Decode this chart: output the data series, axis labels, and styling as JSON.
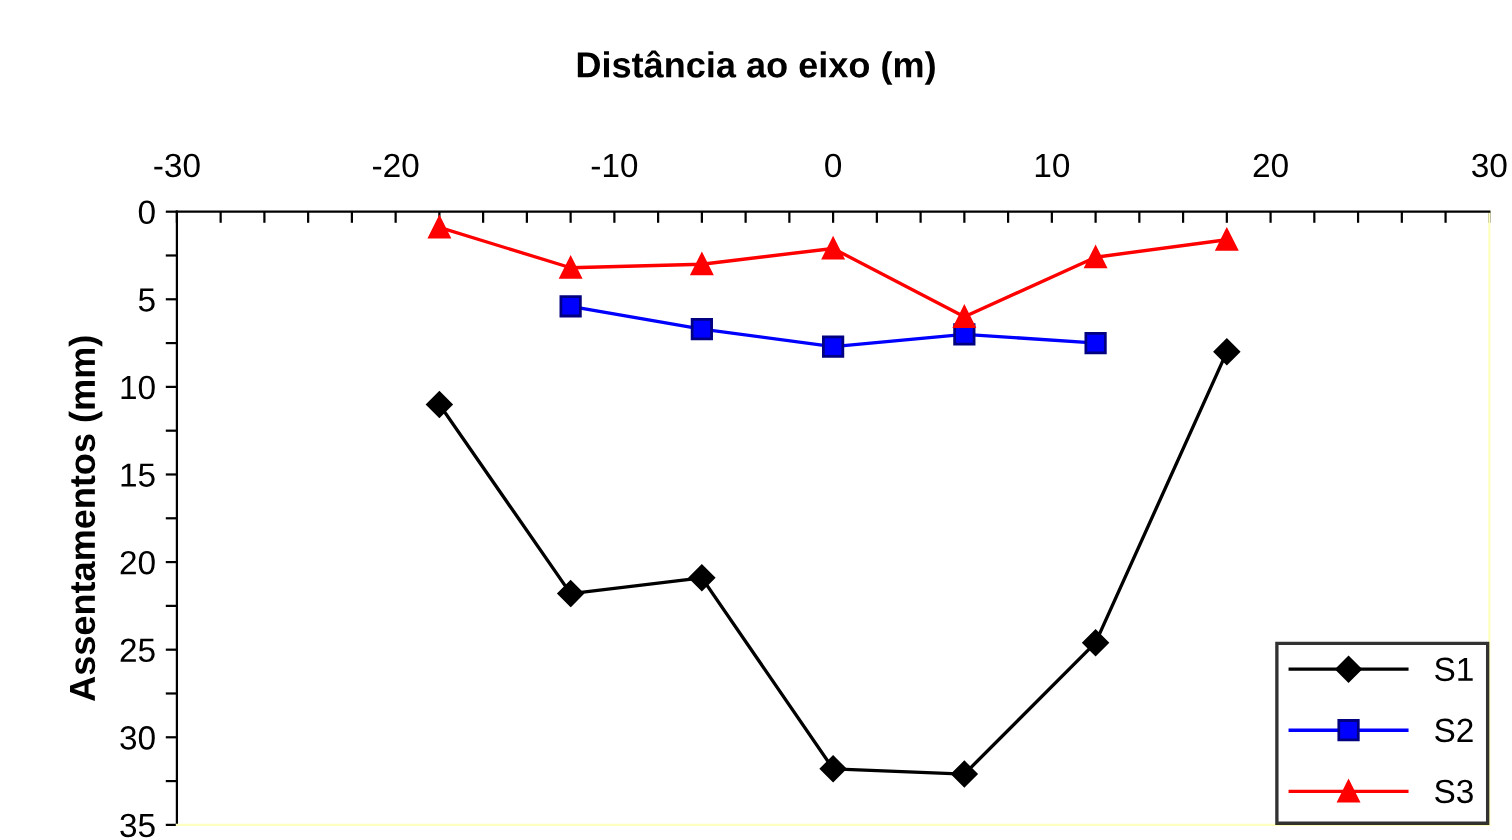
{
  "chart_data": {
    "type": "line",
    "title": "Distância ao eixo (m)",
    "ylabel": "Assentamentos (mm)",
    "xlim": [
      -30,
      30
    ],
    "ylim": [
      35,
      0
    ],
    "xticks": [
      -30,
      {
        "value": -28,
        "label": null
      },
      {
        "value": -26,
        "label": null
      },
      {
        "value": -24,
        "label": null
      },
      {
        "value": -22,
        "label": null
      },
      -20,
      {
        "value": -18,
        "label": null
      },
      {
        "value": -16,
        "label": null
      },
      {
        "value": -14,
        "label": null
      },
      {
        "value": -12,
        "label": null
      },
      -10,
      {
        "value": -8,
        "label": null
      },
      {
        "value": -6,
        "label": null
      },
      {
        "value": -4,
        "label": null
      },
      {
        "value": -2,
        "label": null
      },
      0,
      {
        "value": 2,
        "label": null
      },
      {
        "value": 4,
        "label": null
      },
      {
        "value": 6,
        "label": null
      },
      {
        "value": 8,
        "label": null
      },
      10,
      {
        "value": 12,
        "label": null
      },
      {
        "value": 14,
        "label": null
      },
      {
        "value": 16,
        "label": null
      },
      {
        "value": 18,
        "label": null
      },
      20,
      {
        "value": 22,
        "label": null
      },
      {
        "value": 24,
        "label": null
      },
      {
        "value": 26,
        "label": null
      },
      {
        "value": 28,
        "label": null
      },
      30
    ],
    "yticks": [
      0,
      {
        "value": 2.5,
        "label": null
      },
      5,
      {
        "value": 7.5,
        "label": null
      },
      10,
      {
        "value": 12.5,
        "label": null
      },
      15,
      {
        "value": 17.5,
        "label": null
      },
      20,
      {
        "value": 22.5,
        "label": null
      },
      25,
      {
        "value": 27.5,
        "label": null
      },
      30,
      {
        "value": 32.5,
        "label": null
      },
      35
    ],
    "grid": false,
    "legend": "bottom right",
    "series": [
      {
        "name": "S1",
        "color": "#000000",
        "marker": "diamond",
        "x": [
          -18,
          -12,
          -6,
          0,
          6,
          12,
          18
        ],
        "values": [
          11,
          21.8,
          20.9,
          31.8,
          32.1,
          24.6,
          8.0
        ]
      },
      {
        "name": "S2",
        "color": "#0000ff",
        "marker": "square",
        "x": [
          -12,
          -6,
          0,
          6,
          12
        ],
        "values": [
          5.4,
          6.7,
          7.7,
          7.0,
          7.5
        ]
      },
      {
        "name": "S3",
        "color": "#ff0000",
        "marker": "triangle",
        "x": [
          -18,
          -12,
          -6,
          0,
          6,
          12,
          18
        ],
        "values": [
          0.9,
          3.2,
          3.0,
          2.1,
          6.0,
          2.6,
          1.6
        ]
      }
    ]
  }
}
